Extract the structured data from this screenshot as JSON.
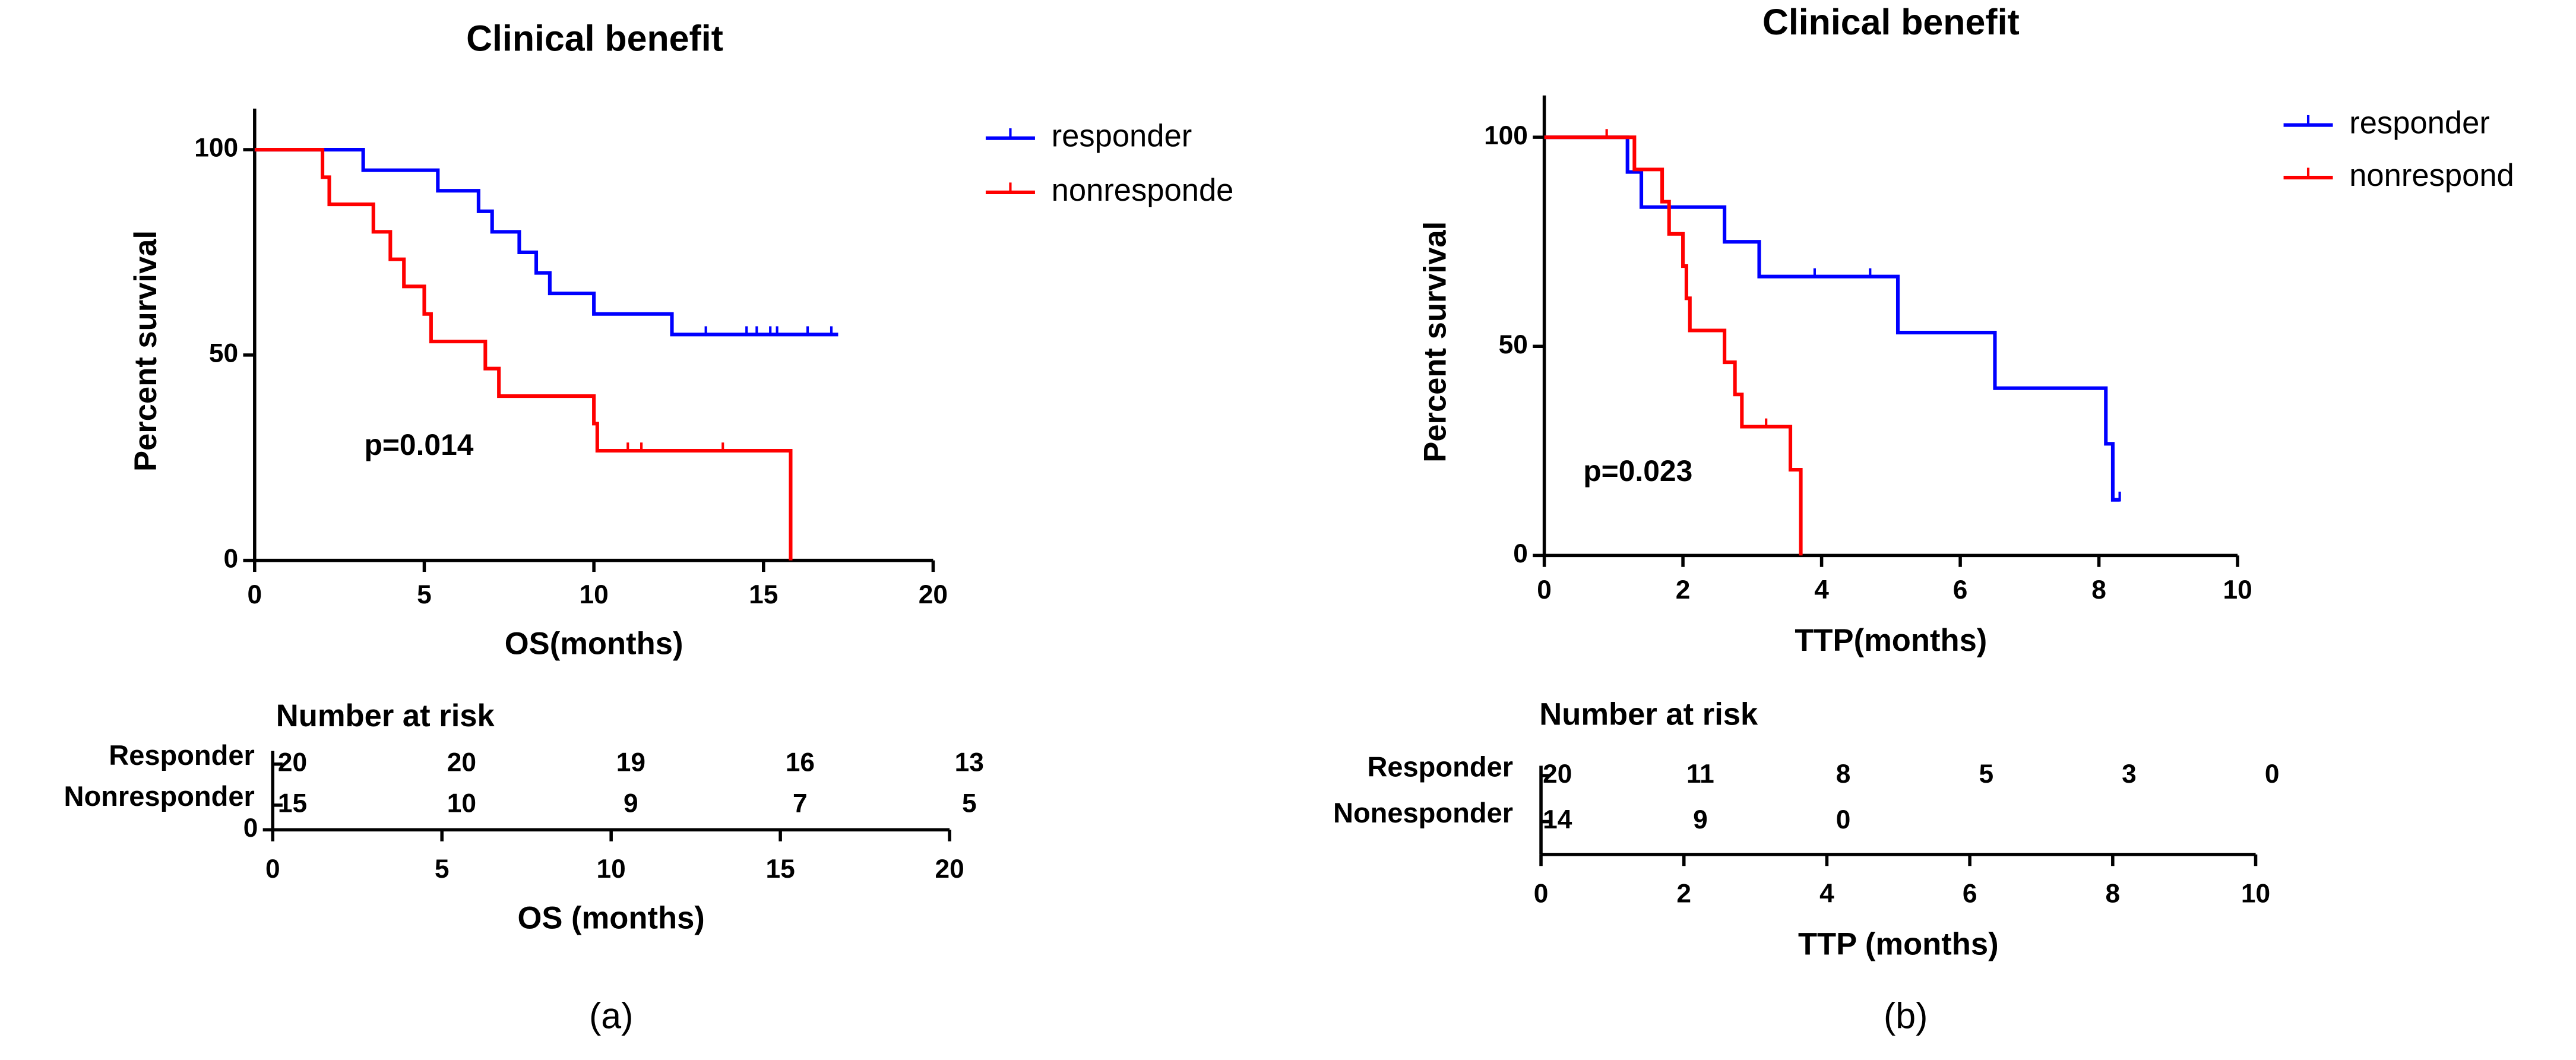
{
  "chart_data": [
    {
      "type": "kaplan-meier",
      "title": "Clinical benefit",
      "x_label": "OS(months)",
      "y_label": "Percent survival",
      "xlim": [
        0,
        20
      ],
      "ylim": [
        0,
        110
      ],
      "xticks": [
        0,
        5,
        10,
        15,
        20
      ],
      "yticks": [
        0,
        50,
        100
      ],
      "annotation": "p=0.014",
      "caption": "(a)",
      "series": [
        {
          "name": "responder",
          "color": "#0000ff",
          "x": [
            0,
            3.2,
            5.4,
            6.6,
            7.0,
            7.8,
            8.3,
            8.7,
            10.0,
            12.3,
            17.2
          ],
          "values": [
            100,
            95,
            90,
            85,
            80,
            75,
            70,
            65,
            60,
            55,
            55
          ],
          "censored_x": [
            13.3,
            14.5,
            14.8,
            15.2,
            15.4,
            16.3,
            17.0
          ],
          "censored_values": [
            55,
            55,
            55,
            55,
            55,
            55,
            55
          ]
        },
        {
          "name": "nonresponde",
          "color": "#ff0000",
          "x": [
            0,
            2.0,
            2.2,
            3.5,
            4.0,
            4.4,
            5.0,
            5.2,
            6.8,
            7.2,
            10.0,
            10.1,
            15.8
          ],
          "values": [
            100,
            93.3,
            86.7,
            80,
            73.3,
            66.7,
            60,
            53.3,
            46.7,
            40,
            33.3,
            26.7,
            0
          ],
          "censored_x": [
            11.0,
            11.4,
            13.8
          ],
          "censored_values": [
            26.7,
            26.7,
            26.7
          ]
        }
      ],
      "risk_table": {
        "title": "Number at risk",
        "x_label": "OS (months)",
        "xlim": [
          0,
          20
        ],
        "xticks": [
          0,
          5,
          10,
          15,
          20
        ],
        "yticks": [
          0
        ],
        "rows": [
          {
            "name": "Responder",
            "values": [
              20,
              20,
              19,
              16,
              13
            ]
          },
          {
            "name": "Nonresponder",
            "values": [
              15,
              10,
              9,
              7,
              5
            ]
          }
        ]
      }
    },
    {
      "type": "kaplan-meier",
      "title": "Clinical benefit",
      "x_label": "TTP(months)",
      "y_label": "Percent survival",
      "xlim": [
        0,
        10
      ],
      "ylim": [
        0,
        110
      ],
      "xticks": [
        0,
        2,
        4,
        6,
        8,
        10
      ],
      "yticks": [
        0,
        50,
        100
      ],
      "annotation": "p=0.023",
      "caption": "(b)",
      "series": [
        {
          "name": "responder",
          "color": "#0000ff",
          "x": [
            0,
            1.2,
            1.4,
            2.6,
            3.1,
            5.1,
            6.5,
            8.1,
            8.2,
            8.3
          ],
          "values": [
            100,
            91.7,
            83.3,
            75,
            66.7,
            53.3,
            40,
            26.7,
            13.3,
            13.3
          ],
          "censored_x": [
            3.9,
            4.7,
            8.3
          ],
          "censored_values": [
            66.7,
            66.7,
            13.3
          ]
        },
        {
          "name": "nonrespond",
          "color": "#ff0000",
          "x": [
            0,
            1.3,
            1.7,
            1.8,
            2.0,
            2.05,
            2.1,
            2.6,
            2.75,
            2.85,
            3.55,
            3.7
          ],
          "values": [
            100,
            92.3,
            84.6,
            76.9,
            69.2,
            61.5,
            53.8,
            46.2,
            38.5,
            30.8,
            20.5,
            0
          ],
          "censored_x": [
            0.9,
            3.2
          ],
          "censored_values": [
            100,
            30.8
          ]
        }
      ],
      "risk_table": {
        "title": "Number at risk",
        "x_label": "TTP (months)",
        "xlim": [
          0,
          10
        ],
        "xticks": [
          0,
          2,
          4,
          6,
          8,
          10
        ],
        "rows": [
          {
            "name": "Responder",
            "values": [
              20,
              11,
              8,
              5,
              3,
              0
            ]
          },
          {
            "name": "Nonesponder",
            "values": [
              14,
              9,
              0
            ]
          }
        ]
      }
    }
  ]
}
